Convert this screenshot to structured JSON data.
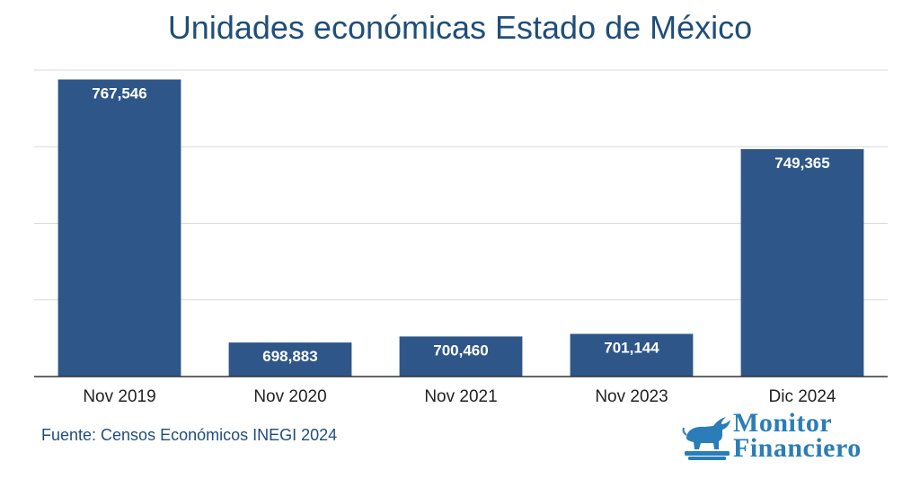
{
  "chart_data": {
    "type": "bar",
    "title": "Unidades económicas Estado de México",
    "categories": [
      "Nov 2019",
      "Nov 2020",
      "Nov 2021",
      "Nov 2023",
      "Dic 2024"
    ],
    "values": [
      767546,
      698883,
      700460,
      701144,
      749365
    ],
    "value_labels": [
      "767,546",
      "698,883",
      "700,460",
      "701,144",
      "749,365"
    ],
    "xlabel": "",
    "ylabel": "",
    "ylim": [
      690000,
      770000
    ],
    "grid": true,
    "bar_color": "#2e5689",
    "grid_color": "#d9d9d9"
  },
  "source": "Fuente: Censos Económicos INEGI 2024",
  "logo": {
    "line1": "Monitor",
    "line2": "Financiero",
    "color": "#2a7db8"
  }
}
